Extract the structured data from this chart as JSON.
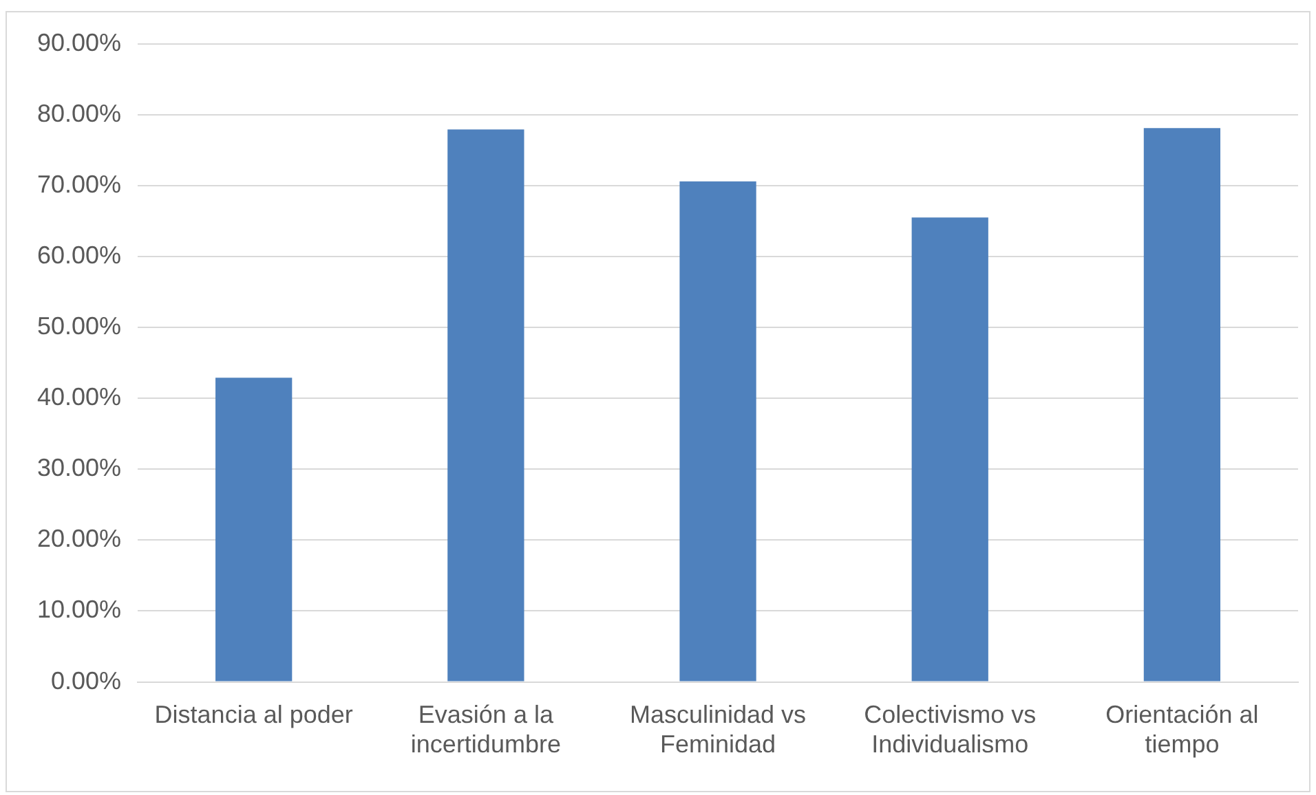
{
  "chart_data": {
    "type": "bar",
    "categories": [
      "Distancia al poder",
      "Evasión a la incertidumbre",
      "Masculinidad vs Feminidad",
      "Colectivismo vs Individualismo",
      "Orientación al tiempo"
    ],
    "values": [
      42.9,
      77.9,
      70.6,
      65.5,
      78.1
    ],
    "color": "#4f81bd",
    "ylim": [
      0,
      90
    ],
    "yticks": [
      {
        "value": 0,
        "label": "0.00%"
      },
      {
        "value": 10,
        "label": "10.00%"
      },
      {
        "value": 20,
        "label": "20.00%"
      },
      {
        "value": 30,
        "label": "30.00%"
      },
      {
        "value": 40,
        "label": "40.00%"
      },
      {
        "value": 50,
        "label": "50.00%"
      },
      {
        "value": 60,
        "label": "60.00%"
      },
      {
        "value": 70,
        "label": "70.00%"
      },
      {
        "value": 80,
        "label": "80.00%"
      },
      {
        "value": 90,
        "label": "90.00%"
      }
    ],
    "grid": "y"
  }
}
